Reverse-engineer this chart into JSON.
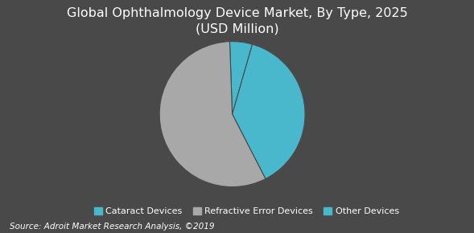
{
  "title": "Global Ophthalmology Device Market, By Type, 2025\n(USD Million)",
  "slices": [
    5,
    38,
    57
  ],
  "labels": [
    "Cataract Devices",
    "Other Devices",
    "Refractive Error Devices"
  ],
  "colors": [
    "#4ab8cc",
    "#4ab8cc",
    "#a8a8a8"
  ],
  "legend_labels": [
    "Cataract Devices",
    "Refractive Error Devices",
    "Other Devices"
  ],
  "legend_colors": [
    "#4ab8cc",
    "#a8a8a8",
    "#4ab8cc"
  ],
  "background_color": "#494949",
  "text_color": "#ffffff",
  "source_text": "Source: Adroit Market Research Analysis, ©2019",
  "startangle": 92,
  "title_fontsize": 11.5,
  "legend_fontsize": 8,
  "source_fontsize": 7.5
}
